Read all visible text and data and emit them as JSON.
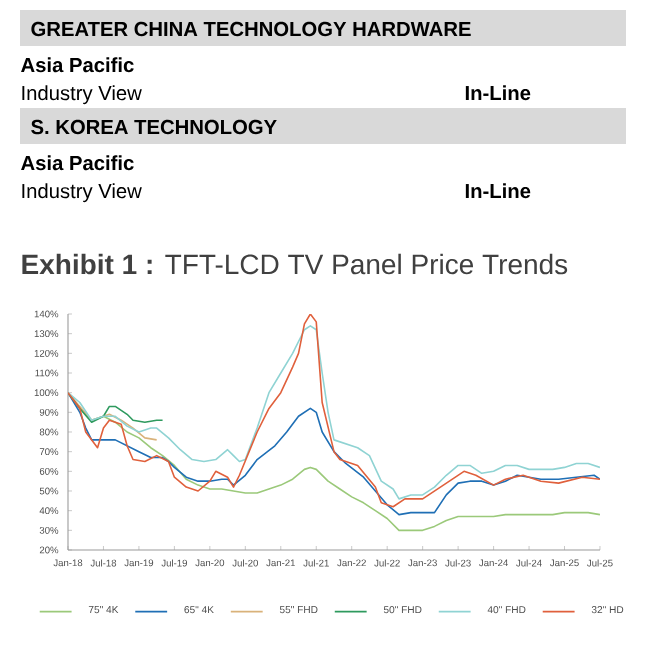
{
  "chart_data": {
    "type": "line",
    "title": "**Exhibit 1 :**  TFT-LCD TV Panel Price Trends",
    "annotations": [
      "GREATER CHINA TECHNOLOGY HARDWARE",
      "Asia Pacific",
      "Industry View",
      "In-Line",
      "S. KOREA TECHNOLOGY",
      "Asia Pacific",
      "Industry View",
      "In-Line"
    ],
    "xlim": [
      "2018-01",
      "2025-07"
    ],
    "xticks": [
      {
        "value": "2018-01",
        "label": "Jan-18"
      },
      {
        "value": "2018-07",
        "label": "Jul-18"
      },
      {
        "value": "2019-01",
        "label": "Jan-19"
      },
      {
        "value": "2019-07",
        "label": "Jul-19"
      },
      {
        "value": "2020-01",
        "label": "Jan-20"
      },
      {
        "value": "2020-07",
        "label": "Jul-20"
      },
      {
        "value": "2021-01",
        "label": "Jan-21"
      },
      {
        "value": "2021-07",
        "label": "Jul-21"
      },
      {
        "value": "2022-01",
        "label": "Jan-22"
      },
      {
        "value": "2022-07",
        "label": "Jul-22"
      },
      {
        "value": "2023-01",
        "label": "Jan-23"
      },
      {
        "value": "2023-07",
        "label": "Jul-23"
      },
      {
        "value": "2024-01",
        "label": "Jan-24"
      },
      {
        "value": "2024-07",
        "label": "Jul-24"
      },
      {
        "value": "2025-01",
        "label": "Jan-25"
      },
      {
        "value": "2025-07",
        "label": "Jul-25"
      }
    ],
    "ylim": [
      20,
      140
    ],
    "yticks": [
      {
        "value": 20,
        "label": "20%"
      },
      {
        "value": 30,
        "label": "30%"
      },
      {
        "value": 40,
        "label": "40%"
      },
      {
        "value": 50,
        "label": "50%"
      },
      {
        "value": 60,
        "label": "60%"
      },
      {
        "value": 70,
        "label": "70%"
      },
      {
        "value": 80,
        "label": "80%"
      },
      {
        "value": 90,
        "label": "90%"
      },
      {
        "value": 100,
        "label": "100%"
      },
      {
        "value": 110,
        "label": "110%"
      },
      {
        "value": 120,
        "label": "120%"
      },
      {
        "value": 130,
        "label": "130%"
      },
      {
        "value": 140,
        "label": "140%"
      }
    ],
    "legend": "bottom",
    "series": [
      {
        "name": "75\" 4K",
        "color": "#9bc97a",
        "x": [
          "2018-01",
          "2018-03",
          "2018-05",
          "2018-07",
          "2018-09",
          "2018-11",
          "2019-01",
          "2019-03",
          "2019-05",
          "2019-07",
          "2019-09",
          "2019-11",
          "2020-01",
          "2020-03",
          "2020-05",
          "2020-07",
          "2020-09",
          "2020-11",
          "2021-01",
          "2021-03",
          "2021-05",
          "2021-06",
          "2021-07",
          "2021-09",
          "2021-11",
          "2022-01",
          "2022-03",
          "2022-05",
          "2022-07",
          "2022-09",
          "2022-11",
          "2023-01",
          "2023-03",
          "2023-05",
          "2023-07",
          "2023-09",
          "2023-11",
          "2024-01",
          "2024-03",
          "2024-05",
          "2024-07",
          "2024-09",
          "2024-11",
          "2025-01",
          "2025-03",
          "2025-05",
          "2025-07"
        ],
        "values": [
          100,
          92,
          86,
          88,
          85,
          80,
          77,
          72,
          68,
          63,
          56,
          53,
          51,
          51,
          50,
          49,
          49,
          51,
          53,
          56,
          61,
          62,
          61,
          55,
          51,
          47,
          44,
          40,
          36,
          30,
          30,
          30,
          32,
          35,
          37,
          37,
          37,
          37,
          38,
          38,
          38,
          38,
          38,
          39,
          39,
          39,
          38
        ]
      },
      {
        "name": "65\" 4K",
        "color": "#1f6fb5",
        "x": [
          "2018-01",
          "2018-03",
          "2018-04",
          "2018-05",
          "2018-07",
          "2018-09",
          "2018-11",
          "2019-01",
          "2019-03",
          "2019-05",
          "2019-06",
          "2019-07",
          "2019-09",
          "2019-11",
          "2020-01",
          "2020-03",
          "2020-04",
          "2020-05",
          "2020-07",
          "2020-09",
          "2020-12",
          "2021-02",
          "2021-04",
          "2021-06",
          "2021-07",
          "2021-08",
          "2021-10",
          "2021-12",
          "2022-03",
          "2022-05",
          "2022-07",
          "2022-09",
          "2022-11",
          "2023-01",
          "2023-03",
          "2023-05",
          "2023-07",
          "2023-09",
          "2023-11",
          "2024-01",
          "2024-03",
          "2024-05",
          "2024-07",
          "2024-09",
          "2024-12",
          "2025-03",
          "2025-06",
          "2025-07"
        ],
        "values": [
          100,
          90,
          82,
          76,
          76,
          76,
          73,
          70,
          67,
          67,
          65,
          62,
          57,
          55,
          55,
          56,
          56,
          53,
          58,
          66,
          73,
          80,
          88,
          92,
          90,
          80,
          70,
          64,
          57,
          50,
          43,
          38,
          39,
          39,
          39,
          48,
          54,
          55,
          55,
          53,
          55,
          58,
          57,
          56,
          56,
          57,
          58,
          56
        ]
      },
      {
        "name": "55\" FHD",
        "color": "#d9b27a",
        "x": [
          "2018-01",
          "2018-03",
          "2018-05",
          "2018-07",
          "2018-08",
          "2018-10",
          "2018-12",
          "2019-02",
          "2019-04"
        ],
        "values": [
          100,
          93,
          86,
          88,
          89,
          86,
          82,
          77,
          76
        ]
      },
      {
        "name": "50\" FHD",
        "color": "#2e9a5e",
        "x": [
          "2018-01",
          "2018-03",
          "2018-05",
          "2018-07",
          "2018-08",
          "2018-09",
          "2018-11",
          "2018-12",
          "2019-02",
          "2019-04",
          "2019-05"
        ],
        "values": [
          100,
          92,
          85,
          88,
          93,
          93,
          89,
          86,
          85,
          86,
          86
        ]
      },
      {
        "name": "40\" FHD",
        "color": "#8fd3d3",
        "x": [
          "2018-01",
          "2018-03",
          "2018-05",
          "2018-07",
          "2018-09",
          "2018-11",
          "2019-01",
          "2019-03",
          "2019-04",
          "2019-06",
          "2019-08",
          "2019-10",
          "2019-12",
          "2020-02",
          "2020-04",
          "2020-05",
          "2020-06",
          "2020-07",
          "2020-09",
          "2020-11",
          "2021-01",
          "2021-03",
          "2021-05",
          "2021-06",
          "2021-07",
          "2021-08",
          "2021-09",
          "2021-10",
          "2021-12",
          "2022-02",
          "2022-04",
          "2022-06",
          "2022-08",
          "2022-09",
          "2022-11",
          "2023-01",
          "2023-03",
          "2023-05",
          "2023-07",
          "2023-09",
          "2023-11",
          "2024-01",
          "2024-03",
          "2024-05",
          "2024-07",
          "2024-09",
          "2024-11",
          "2025-01",
          "2025-03",
          "2025-05",
          "2025-07"
        ],
        "values": [
          100,
          95,
          86,
          88,
          88,
          83,
          80,
          82,
          82,
          77,
          71,
          66,
          65,
          66,
          71,
          68,
          65,
          66,
          82,
          100,
          110,
          120,
          132,
          134,
          132,
          110,
          90,
          76,
          74,
          72,
          68,
          55,
          51,
          46,
          48,
          48,
          52,
          58,
          63,
          63,
          59,
          60,
          63,
          63,
          61,
          61,
          61,
          62,
          64,
          64,
          62
        ]
      },
      {
        "name": "32\" HD",
        "color": "#e0603c",
        "x": [
          "2018-01",
          "2018-03",
          "2018-04",
          "2018-06",
          "2018-07",
          "2018-08",
          "2018-10",
          "2018-11",
          "2018-12",
          "2019-02",
          "2019-04",
          "2019-06",
          "2019-07",
          "2019-09",
          "2019-11",
          "2020-01",
          "2020-02",
          "2020-04",
          "2020-05",
          "2020-06",
          "2020-09",
          "2020-11",
          "2021-01",
          "2021-03",
          "2021-04",
          "2021-05",
          "2021-06",
          "2021-07",
          "2021-08",
          "2021-10",
          "2021-11",
          "2022-02",
          "2022-05",
          "2022-06",
          "2022-08",
          "2022-10",
          "2023-01",
          "2023-04",
          "2023-08",
          "2023-10",
          "2024-01",
          "2024-03",
          "2024-06",
          "2024-09",
          "2024-12",
          "2025-04",
          "2025-07"
        ],
        "values": [
          100,
          92,
          80,
          72,
          82,
          86,
          84,
          73,
          66,
          65,
          68,
          65,
          57,
          52,
          50,
          55,
          60,
          57,
          52,
          58,
          80,
          92,
          100,
          113,
          120,
          135,
          140,
          136,
          95,
          70,
          66,
          63,
          52,
          44,
          42,
          46,
          46,
          52,
          60,
          58,
          53,
          56,
          58,
          55,
          54,
          57,
          56
        ]
      }
    ]
  }
}
